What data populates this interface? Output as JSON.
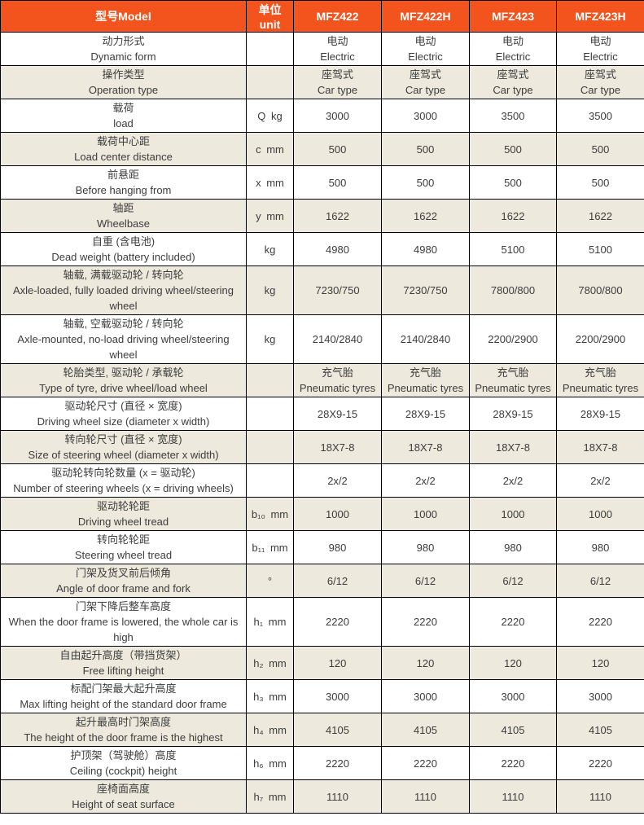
{
  "colors": {
    "header_bg": "#F3531D",
    "header_text": "#FFFFFF",
    "row_alt_bg": "#EDE9DC",
    "row_bg": "#FFFFFF",
    "border": "#000000",
    "text": "#3C3C3C"
  },
  "header": {
    "model_label": "型号Model",
    "unit_label": "单位unit",
    "models": [
      "MFZ422",
      "MFZ422H",
      "MFZ423",
      "MFZ423H"
    ]
  },
  "rows": [
    {
      "label_cn": "动力形式",
      "label_en": "Dynamic form",
      "unit": "",
      "values": [
        "电动\nElectric",
        "电动\nElectric",
        "电动\nElectric",
        "电动\nElectric"
      ]
    },
    {
      "label_cn": "操作类型",
      "label_en": "Operation type",
      "unit": "",
      "values": [
        "座驾式\nCar type",
        "座驾式\nCar type",
        "座驾式\nCar type",
        "座驾式\nCar type"
      ]
    },
    {
      "label_cn": "载荷",
      "label_en": "load",
      "unit": "Q kg",
      "values": [
        "3000",
        "3000",
        "3500",
        "3500"
      ]
    },
    {
      "label_cn": "载荷中心距",
      "label_en": "Load center distance",
      "unit": "c mm",
      "values": [
        "500",
        "500",
        "500",
        "500"
      ]
    },
    {
      "label_cn": "前悬距",
      "label_en": "Before hanging from",
      "unit": "x mm",
      "values": [
        "500",
        "500",
        "500",
        "500"
      ]
    },
    {
      "label_cn": "轴距",
      "label_en": "Wheelbase",
      "unit": "y mm",
      "values": [
        "1622",
        "1622",
        "1622",
        "1622"
      ]
    },
    {
      "label_cn": "自重 (含电池)",
      "label_en": "Dead weight (battery included)",
      "unit": "kg",
      "values": [
        "4980",
        "4980",
        "5100",
        "5100"
      ]
    },
    {
      "label_cn": "轴载, 满载驱动轮 / 转向轮",
      "label_en": "Axle-loaded, fully loaded driving wheel/steering wheel",
      "unit": "kg",
      "values": [
        "7230/750",
        "7230/750",
        "7800/800",
        "7800/800"
      ]
    },
    {
      "label_cn": "轴载, 空载驱动轮 / 转向轮",
      "label_en": "Axle-mounted, no-load driving wheel/steering wheel",
      "unit": "kg",
      "values": [
        "2140/2840",
        "2140/2840",
        "2200/2900",
        "2200/2900"
      ]
    },
    {
      "label_cn": "轮胎类型, 驱动轮 / 承载轮",
      "label_en": "Type of tyre, drive wheel/load wheel",
      "unit": "",
      "values": [
        "充气胎\nPneumatic tyres",
        "充气胎\nPneumatic tyres",
        "充气胎\nPneumatic tyres",
        "充气胎\nPneumatic tyres"
      ]
    },
    {
      "label_cn": "驱动轮尺寸 (直径 × 宽度)",
      "label_en": "Driving wheel size (diameter x width)",
      "unit": "",
      "values": [
        "28X9-15",
        "28X9-15",
        "28X9-15",
        "28X9-15"
      ]
    },
    {
      "label_cn": "转向轮尺寸 (直径 × 宽度)",
      "label_en": "Size of steering wheel (diameter x width)",
      "unit": "",
      "values": [
        "18X7-8",
        "18X7-8",
        "18X7-8",
        "18X7-8"
      ]
    },
    {
      "label_cn": "驱动轮转向轮数量 (x = 驱动轮)",
      "label_en": "Number of steering wheels (x = driving wheels)",
      "unit": "",
      "values": [
        "2x/2",
        "2x/2",
        "2x/2",
        "2x/2"
      ]
    },
    {
      "label_cn": "驱动轮轮距",
      "label_en": "Driving wheel tread",
      "unit": "b₁₀ mm",
      "values": [
        "1000",
        "1000",
        "1000",
        "1000"
      ]
    },
    {
      "label_cn": "转向轮轮距",
      "label_en": "Steering wheel tread",
      "unit": "b₁₁ mm",
      "values": [
        "980",
        "980",
        "980",
        "980"
      ]
    },
    {
      "label_cn": "门架及货叉前后倾角",
      "label_en": "Angle of door frame and fork",
      "unit": "°",
      "values": [
        "6/12",
        "6/12",
        "6/12",
        "6/12"
      ]
    },
    {
      "label_cn": "门架下降后整车高度",
      "label_en": "When the door frame is lowered, the whole car is high",
      "unit": "h₁ mm",
      "values": [
        "2220",
        "2220",
        "2220",
        "2220"
      ]
    },
    {
      "label_cn": "自由起升高度（带挡货架）",
      "label_en": "Free lifting height",
      "unit": "h₂ mm",
      "values": [
        "120",
        "120",
        "120",
        "120"
      ]
    },
    {
      "label_cn": "标配门架最大起升高度",
      "label_en": "Max lifting height of the standard door frame",
      "unit": "h₃ mm",
      "values": [
        "3000",
        "3000",
        "3000",
        "3000"
      ]
    },
    {
      "label_cn": "起升最高时门架高度",
      "label_en": "The height of the door frame is the highest",
      "unit": "h₄ mm",
      "values": [
        "4105",
        "4105",
        "4105",
        "4105"
      ]
    },
    {
      "label_cn": "护顶架（驾驶舱）高度",
      "label_en": "Ceiling (cockpit) height",
      "unit": "h₆ mm",
      "values": [
        "2220",
        "2220",
        "2220",
        "2220"
      ]
    },
    {
      "label_cn": "座椅面高度",
      "label_en": "Height of seat surface",
      "unit": "h₇ mm",
      "values": [
        "1110",
        "1110",
        "1110",
        "1110"
      ]
    }
  ]
}
